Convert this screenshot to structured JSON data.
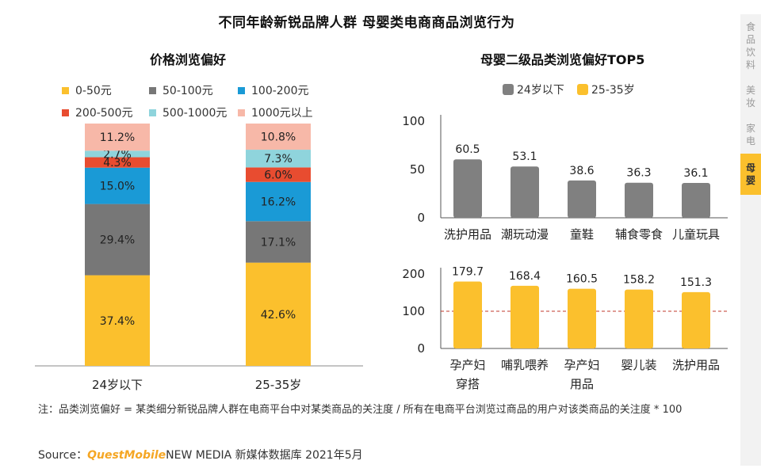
{
  "title": "不同年龄新锐品牌人群 母婴类电商商品浏览行为",
  "left_subtitle": "价格浏览偏好",
  "right_subtitle": "母婴二级品类浏览偏好TOP5",
  "price_legend": [
    {
      "label": "0-50元",
      "color": "#fbc02d"
    },
    {
      "label": "50-100元",
      "color": "#777777"
    },
    {
      "label": "100-200元",
      "color": "#1a9ad6"
    },
    {
      "label": "200-500元",
      "color": "#e84c30"
    },
    {
      "label": "500-1000元",
      "color": "#8fd4dc"
    },
    {
      "label": "1000元以上",
      "color": "#f7b8a8"
    }
  ],
  "age_legend": [
    {
      "label": "24岁以下",
      "color": "#808080"
    },
    {
      "label": "25-35岁",
      "color": "#fbc02d"
    }
  ],
  "side_tabs": [
    {
      "label": "食品饮料",
      "active": false
    },
    {
      "label": "美妆",
      "active": false
    },
    {
      "label": "家电",
      "active": false
    },
    {
      "label": "母婴",
      "active": true
    }
  ],
  "note": "注：品类浏览偏好 = 某类细分新锐品牌人群在电商平台中对某类商品的关注度 / 所有在电商平台浏览过商品的用户对该类商品的关注度 * 100",
  "source": {
    "prefix": "Source：",
    "brand": "QuestMobile",
    "suffix": "NEW MEDIA 新媒体数据库 2021年5月"
  },
  "chart_data": [
    {
      "type": "bar",
      "stacked": true,
      "percent": true,
      "title": "价格浏览偏好",
      "categories": [
        "24岁以下",
        "25-35岁"
      ],
      "series": [
        {
          "name": "0-50元",
          "values": [
            37.4,
            42.6
          ],
          "labels": [
            "37.4%",
            "42.6%"
          ]
        },
        {
          "name": "50-100元",
          "values": [
            29.4,
            17.1
          ],
          "labels": [
            "29.4%",
            "17.1%"
          ]
        },
        {
          "name": "100-200元",
          "values": [
            15.0,
            16.2
          ],
          "labels": [
            "15.0%",
            "16.2%"
          ]
        },
        {
          "name": "200-500元",
          "values": [
            4.3,
            6.0
          ],
          "labels": [
            "4.3%",
            "6.0%"
          ]
        },
        {
          "name": "500-1000元",
          "values": [
            2.7,
            7.3
          ],
          "labels": [
            "2.7%",
            "7.3%"
          ]
        },
        {
          "name": "1000元以上",
          "values": [
            11.2,
            10.8
          ],
          "labels": [
            "11.2%",
            "10.8%"
          ]
        }
      ]
    },
    {
      "type": "bar",
      "title": "母婴二级品类浏览偏好TOP5",
      "series_name": "24岁以下",
      "categories": [
        "洗护用品",
        "潮玩动漫",
        "童鞋",
        "辅食零食",
        "儿童玩具"
      ],
      "values": [
        60.5,
        53.1,
        38.6,
        36.3,
        36.1
      ],
      "labels": [
        "60.5",
        "53.1",
        "38.6",
        "36.3",
        "36.1"
      ],
      "ylim": [
        0,
        100
      ],
      "yticks": [
        "0",
        "50",
        "100"
      ]
    },
    {
      "type": "bar",
      "title": "母婴二级品类浏览偏好TOP5",
      "series_name": "25-35岁",
      "categories": [
        "孕产妇穿搭",
        "哺乳喂养",
        "孕产妇用品",
        "婴儿装",
        "洗护用品"
      ],
      "category_lines": [
        [
          "孕产妇",
          "穿搭"
        ],
        [
          "哺乳喂养"
        ],
        [
          "孕产妇",
          "用品"
        ],
        [
          "婴儿装"
        ],
        [
          "洗护用品"
        ]
      ],
      "values": [
        179.7,
        168.4,
        160.5,
        158.2,
        151.3
      ],
      "labels": [
        "179.7",
        "168.4",
        "160.5",
        "158.2",
        "151.3"
      ],
      "ylim": [
        0,
        200
      ],
      "yticks": [
        "0",
        "100",
        "200"
      ],
      "reference_line": 100
    }
  ]
}
